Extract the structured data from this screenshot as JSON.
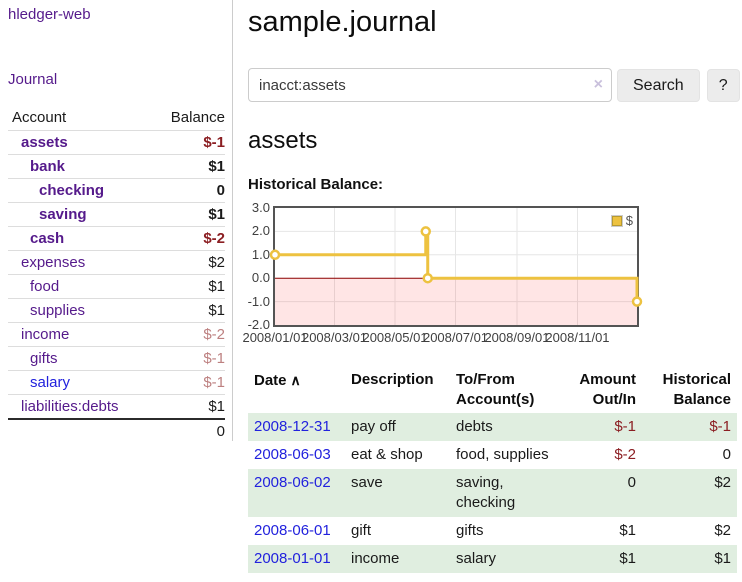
{
  "app": {
    "title": "hledger-web"
  },
  "colors": {
    "link_purple": "#551a8b",
    "link_blue": "#2222dd",
    "negative": "#8b1e22",
    "negative_muted": "#bd8080",
    "row_stripe_green": "#e0eee0",
    "series_gold": "#edc240",
    "zero_line": "#8b0000",
    "negative_region": "rgba(255,0,0,0.10)",
    "plot_border": "#545454"
  },
  "sidebar": {
    "journal_link": "Journal",
    "accounts_table": {
      "col_account": "Account",
      "col_balance": "Balance",
      "rows": [
        {
          "name": "assets",
          "indent": 1,
          "bold": true,
          "balance": "$-1",
          "balance_class": "neg"
        },
        {
          "name": "bank",
          "indent": 2,
          "bold": true,
          "balance": "$1",
          "balance_class": ""
        },
        {
          "name": "checking",
          "indent": 3,
          "bold": true,
          "balance": "0",
          "balance_class": ""
        },
        {
          "name": "saving",
          "indent": 3,
          "bold": true,
          "balance": "$1",
          "balance_class": ""
        },
        {
          "name": "cash",
          "indent": 2,
          "bold": true,
          "balance": "$-2",
          "balance_class": "neg"
        },
        {
          "name": "expenses",
          "indent": 1,
          "bold": false,
          "balance": "$2",
          "balance_class": ""
        },
        {
          "name": "food",
          "indent": 2,
          "bold": false,
          "balance": "$1",
          "balance_class": ""
        },
        {
          "name": "supplies",
          "indent": 2,
          "bold": false,
          "balance": "$1",
          "balance_class": ""
        },
        {
          "name": "income",
          "indent": 1,
          "bold": false,
          "balance": "$-2",
          "balance_class": "neg-muted"
        },
        {
          "name": "gifts",
          "indent": 2,
          "bold": false,
          "balance": "$-1",
          "balance_class": "neg-muted"
        },
        {
          "name": "salary",
          "indent": 2,
          "bold": false,
          "link_color": "blue",
          "balance": "$-1",
          "balance_class": "neg-muted"
        },
        {
          "name": "liabilities:debts",
          "indent": 1,
          "bold": false,
          "balance": "$1",
          "balance_class": ""
        }
      ],
      "total": "0"
    }
  },
  "main": {
    "title": "sample.journal",
    "search": {
      "value": "inacct:assets",
      "clear_icon": "×",
      "search_button": "Search",
      "help_button": "?"
    },
    "account_heading": "assets",
    "chart_heading": "Historical Balance:"
  },
  "chart_data": {
    "type": "line",
    "title": "Historical Balance:",
    "xlim_days": [
      0,
      365
    ],
    "ylim": [
      -2,
      3
    ],
    "grid": true,
    "negative_region_shaded": true,
    "legend": {
      "label": "$",
      "position": "top-right"
    },
    "x_ticks": [
      {
        "label": "2008/01/01",
        "day": 0
      },
      {
        "label": "2008/03/01",
        "day": 60
      },
      {
        "label": "2008/05/01",
        "day": 121
      },
      {
        "label": "2008/07/01",
        "day": 182
      },
      {
        "label": "2008/09/01",
        "day": 244
      },
      {
        "label": "2008/11/01",
        "day": 305
      }
    ],
    "y_ticks": [
      {
        "label": "3.0",
        "value": 3
      },
      {
        "label": "2.0",
        "value": 2
      },
      {
        "label": "1.0",
        "value": 1
      },
      {
        "label": "0.0",
        "value": 0
      },
      {
        "label": "-1.0",
        "value": -1
      },
      {
        "label": "-2.0",
        "value": -2
      }
    ],
    "series": [
      {
        "name": "$",
        "color": "#edc240",
        "step": true,
        "points": [
          {
            "date": "2008-01-01",
            "day": 0,
            "value": 1
          },
          {
            "date": "2008-06-01",
            "day": 152,
            "value": 2
          },
          {
            "date": "2008-06-03",
            "day": 154,
            "value": 0
          },
          {
            "date": "2008-12-31",
            "day": 365,
            "value": -1
          }
        ]
      }
    ]
  },
  "register": {
    "header": {
      "date": "Date",
      "sort_icon": "∧",
      "description": "Description",
      "accounts": "To/From Account(s)",
      "amount": "Amount Out/In",
      "balance": "Historical Balance"
    },
    "rows": [
      {
        "date": "2008-12-31",
        "description": "pay off",
        "accounts": "debts",
        "amount": "$-1",
        "amount_neg": true,
        "balance": "$-1",
        "balance_neg": true
      },
      {
        "date": "2008-06-03",
        "description": "eat & shop",
        "accounts": "food, supplies",
        "amount": "$-2",
        "amount_neg": true,
        "balance": "0",
        "balance_neg": false
      },
      {
        "date": "2008-06-02",
        "description": "save",
        "accounts": "saving, checking",
        "amount": "0",
        "amount_neg": false,
        "balance": "$2",
        "balance_neg": false
      },
      {
        "date": "2008-06-01",
        "description": "gift",
        "accounts": "gifts",
        "amount": "$1",
        "amount_neg": false,
        "balance": "$2",
        "balance_neg": false
      },
      {
        "date": "2008-01-01",
        "description": "income",
        "accounts": "salary",
        "amount": "$1",
        "amount_neg": false,
        "balance": "$1",
        "balance_neg": false
      }
    ]
  }
}
